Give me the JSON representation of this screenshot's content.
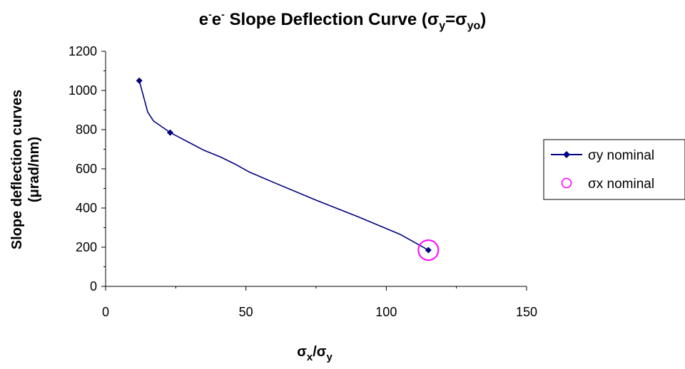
{
  "chart_data": {
    "type": "line",
    "title": {
      "prefix": "e",
      "sup1": "-",
      "mid": "e",
      "sup2": "-",
      "main": " Slope Deflection Curve (σ",
      "sub_y": "y",
      "eq": "=σ",
      "sub_yo": "yo",
      "close": ")"
    },
    "xlabel": {
      "sigma1": "σ",
      "sub1": "x",
      "slash": "/σ",
      "sub2": "y"
    },
    "ylabel_line1": "Slope deflection curves",
    "ylabel_line2": "(μrad/nm)",
    "xlim": [
      0,
      150
    ],
    "ylim": [
      0,
      1200
    ],
    "x_ticks": [
      "0",
      "50",
      "100",
      "150"
    ],
    "y_ticks": [
      "0",
      "200",
      "400",
      "600",
      "800",
      "1000",
      "1200"
    ],
    "grid": false,
    "legend_position": "right",
    "series": [
      {
        "name": "σy nominal",
        "color": "#000080",
        "marker": "diamond",
        "x": [
          12,
          15,
          17,
          23,
          29,
          35,
          41,
          46,
          51,
          60,
          75,
          90,
          105,
          115
        ],
        "y": [
          1050,
          890,
          845,
          785,
          740,
          695,
          660,
          625,
          585,
          530,
          440,
          355,
          265,
          185
        ],
        "markers_x": [
          12,
          23,
          115
        ],
        "markers_y": [
          1050,
          785,
          185
        ]
      },
      {
        "name": "σx nominal",
        "color": "#ff00ff",
        "marker": "circle",
        "x": [
          115
        ],
        "y": [
          185
        ]
      }
    ]
  }
}
